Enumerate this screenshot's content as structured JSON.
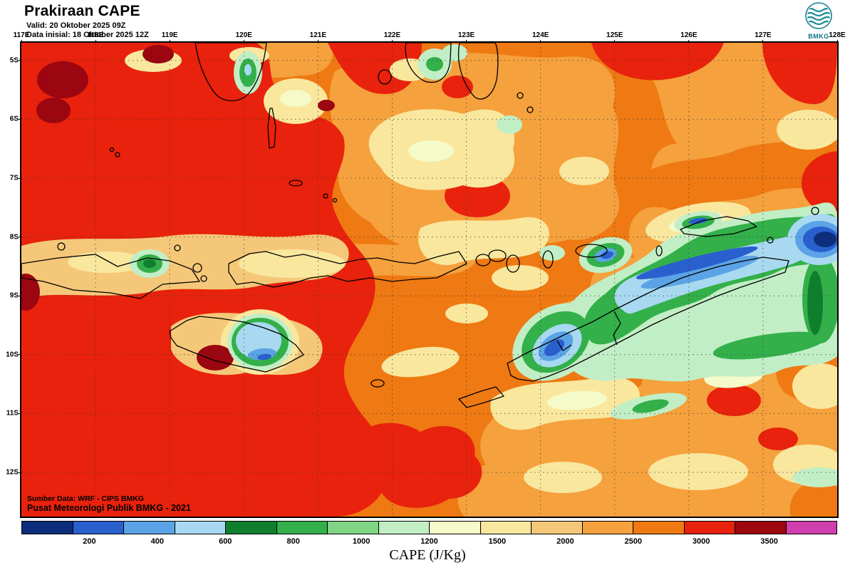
{
  "header": {
    "title": "Prakiraan CAPE",
    "valid": "Valid: 20 Oktober 2025 09Z",
    "initial": "Data inisial: 18 Oktober 2025 12Z",
    "logo": "BMKG"
  },
  "map": {
    "lon_labels": [
      "117E",
      "118E",
      "119E",
      "120E",
      "121E",
      "122E",
      "123E",
      "124E",
      "125E",
      "126E",
      "127E",
      "128E"
    ],
    "lat_labels": [
      "5S",
      "6S",
      "7S",
      "8S",
      "9S",
      "10S",
      "11S",
      "12S"
    ],
    "credit1": "Sumber Data: WRF - CIPS BMKG",
    "credit2": "Pusat Meteorologi Publik BMKG - 2021"
  },
  "colorbar": {
    "caption": "CAPE (J/Kg)",
    "labels": [
      "200",
      "400",
      "600",
      "800",
      "1000",
      "1200",
      "1500",
      "2000",
      "2500",
      "3000",
      "3500"
    ],
    "colors": [
      "#0d2e7c",
      "#2a5fce",
      "#5ba3e6",
      "#a8d9f0",
      "#0f7f2e",
      "#33b04a",
      "#7fd584",
      "#c2eec6",
      "#f4fac8",
      "#f9e79e",
      "#f5c879",
      "#f5a13d",
      "#ef7912",
      "#e8220c",
      "#9c0610",
      "#d13fae"
    ]
  },
  "chart_data": {
    "type": "heatmap",
    "title": "Prakiraan CAPE",
    "units": "J/Kg",
    "valid_time": "20 Oktober 2025 09Z",
    "initial_time": "18 Oktober 2025 12Z",
    "x_ticks": [
      "117E",
      "118E",
      "119E",
      "120E",
      "121E",
      "122E",
      "123E",
      "124E",
      "125E",
      "126E",
      "127E",
      "128E"
    ],
    "y_ticks": [
      "5S",
      "6S",
      "7S",
      "8S",
      "9S",
      "10S",
      "11S",
      "12S"
    ],
    "colorbar_ticks": [
      200,
      400,
      600,
      800,
      1000,
      1200,
      1500,
      2000,
      2500,
      3000,
      3500
    ],
    "palette": [
      "#0d2e7c",
      "#2a5fce",
      "#5ba3e6",
      "#a8d9f0",
      "#0f7f2e",
      "#33b04a",
      "#7fd584",
      "#c2eec6",
      "#f4fac8",
      "#f9e79e",
      "#f5c879",
      "#f5a13d",
      "#ef7912",
      "#e8220c",
      "#9c0610",
      "#d13fae"
    ],
    "field_summary": [
      "High CAPE 2500-3000 J/Kg (red) with local >3000 (dark red) over seas west of ~121E",
      "Moderate CAPE 1500-2500 J/Kg (orange shades) across the central and northern map",
      "Low CAPE below 400 J/Kg (blue/pale blue) over Sumba, inland West Timor, and a band northeast of Timor toward 128E",
      "Green/pale-green 400-1200 J/Kg halo surrounding the low-CAPE cores in the east"
    ]
  }
}
